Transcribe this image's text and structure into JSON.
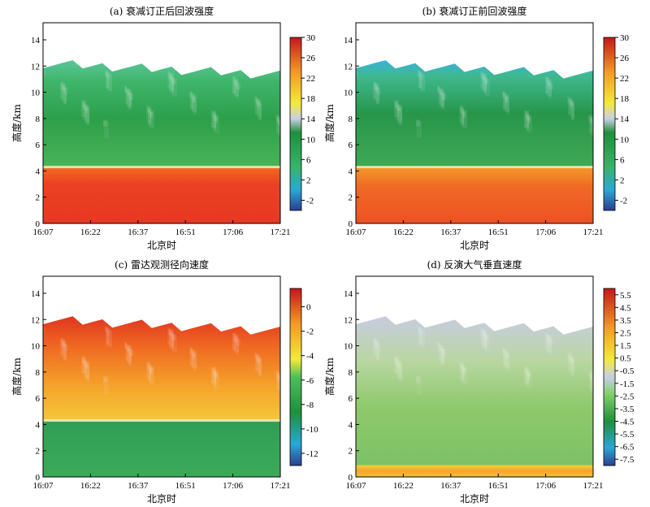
{
  "xlabel": "北京时",
  "ylabel": "高度/km",
  "x_ticks": [
    "16:07",
    "16:22",
    "16:37",
    "16:51",
    "17:06",
    "17:21"
  ],
  "y_ticks": [
    0,
    2,
    4,
    6,
    8,
    10,
    12,
    14
  ],
  "chart_data": [
    {
      "type": "heatmap",
      "title": "(a) 衰减订正后回波强度",
      "xlabel": "北京时",
      "ylabel": "高度/km",
      "ylim": [
        0,
        15.3
      ],
      "colorbar": {
        "ticks": [
          -2,
          2,
          6,
          10,
          14,
          18,
          22,
          26,
          30
        ],
        "range": [
          -4,
          30
        ]
      },
      "layers": [
        {
          "height_km": [
            0,
            4.3
          ],
          "value": 27,
          "description_text": ""
        },
        {
          "height_km": [
            4.3,
            12.2
          ],
          "value": 9
        }
      ],
      "melting_layer_km": 4.3,
      "cloud_top_km": 12.2
    },
    {
      "type": "heatmap",
      "title": "(b) 衰减订正前回波强度",
      "xlabel": "北京时",
      "ylabel": "高度/km",
      "ylim": [
        0,
        15.3
      ],
      "colorbar": {
        "ticks": [
          -2,
          2,
          6,
          10,
          14,
          18,
          22,
          26,
          30
        ],
        "range": [
          -4,
          30
        ]
      },
      "layers": [
        {
          "height_km": [
            0,
            4.3
          ],
          "value": 25
        },
        {
          "height_km": [
            4.3,
            12.2
          ],
          "value": 6
        }
      ],
      "melting_layer_km": 4.3,
      "cloud_top_km": 12.2
    },
    {
      "type": "heatmap",
      "title": "(c) 雷达观测径向速度",
      "xlabel": "北京时",
      "ylabel": "高度/km",
      "ylim": [
        0,
        15.3
      ],
      "colorbar": {
        "ticks": [
          0,
          -2,
          -4,
          -6,
          -8,
          -10,
          -12
        ],
        "range": [
          -13,
          1.5
        ]
      },
      "layers": [
        {
          "height_km": [
            0,
            4.3
          ],
          "value": -7.5
        },
        {
          "height_km": [
            4.3,
            12.0
          ],
          "value": -2
        }
      ],
      "melting_layer_km": 4.3,
      "cloud_top_km": 12.0
    },
    {
      "type": "heatmap",
      "title": "(d) 反演大气垂直速度",
      "xlabel": "北京时",
      "ylabel": "高度/km",
      "ylim": [
        0,
        15.3
      ],
      "colorbar": {
        "ticks": [
          5.5,
          4.5,
          3.5,
          2.5,
          1.5,
          0.5,
          -0.5,
          -1.5,
          -2.5,
          -3.5,
          -4.5,
          -5.5,
          -6.5,
          -7.5
        ],
        "range": [
          -8,
          6
        ]
      },
      "layers": [
        {
          "height_km": [
            0,
            0.9
          ],
          "value": 1.5
        },
        {
          "height_km": [
            0.9,
            12.0
          ],
          "value": -1.5
        }
      ],
      "cloud_top_km": 12.0
    }
  ]
}
